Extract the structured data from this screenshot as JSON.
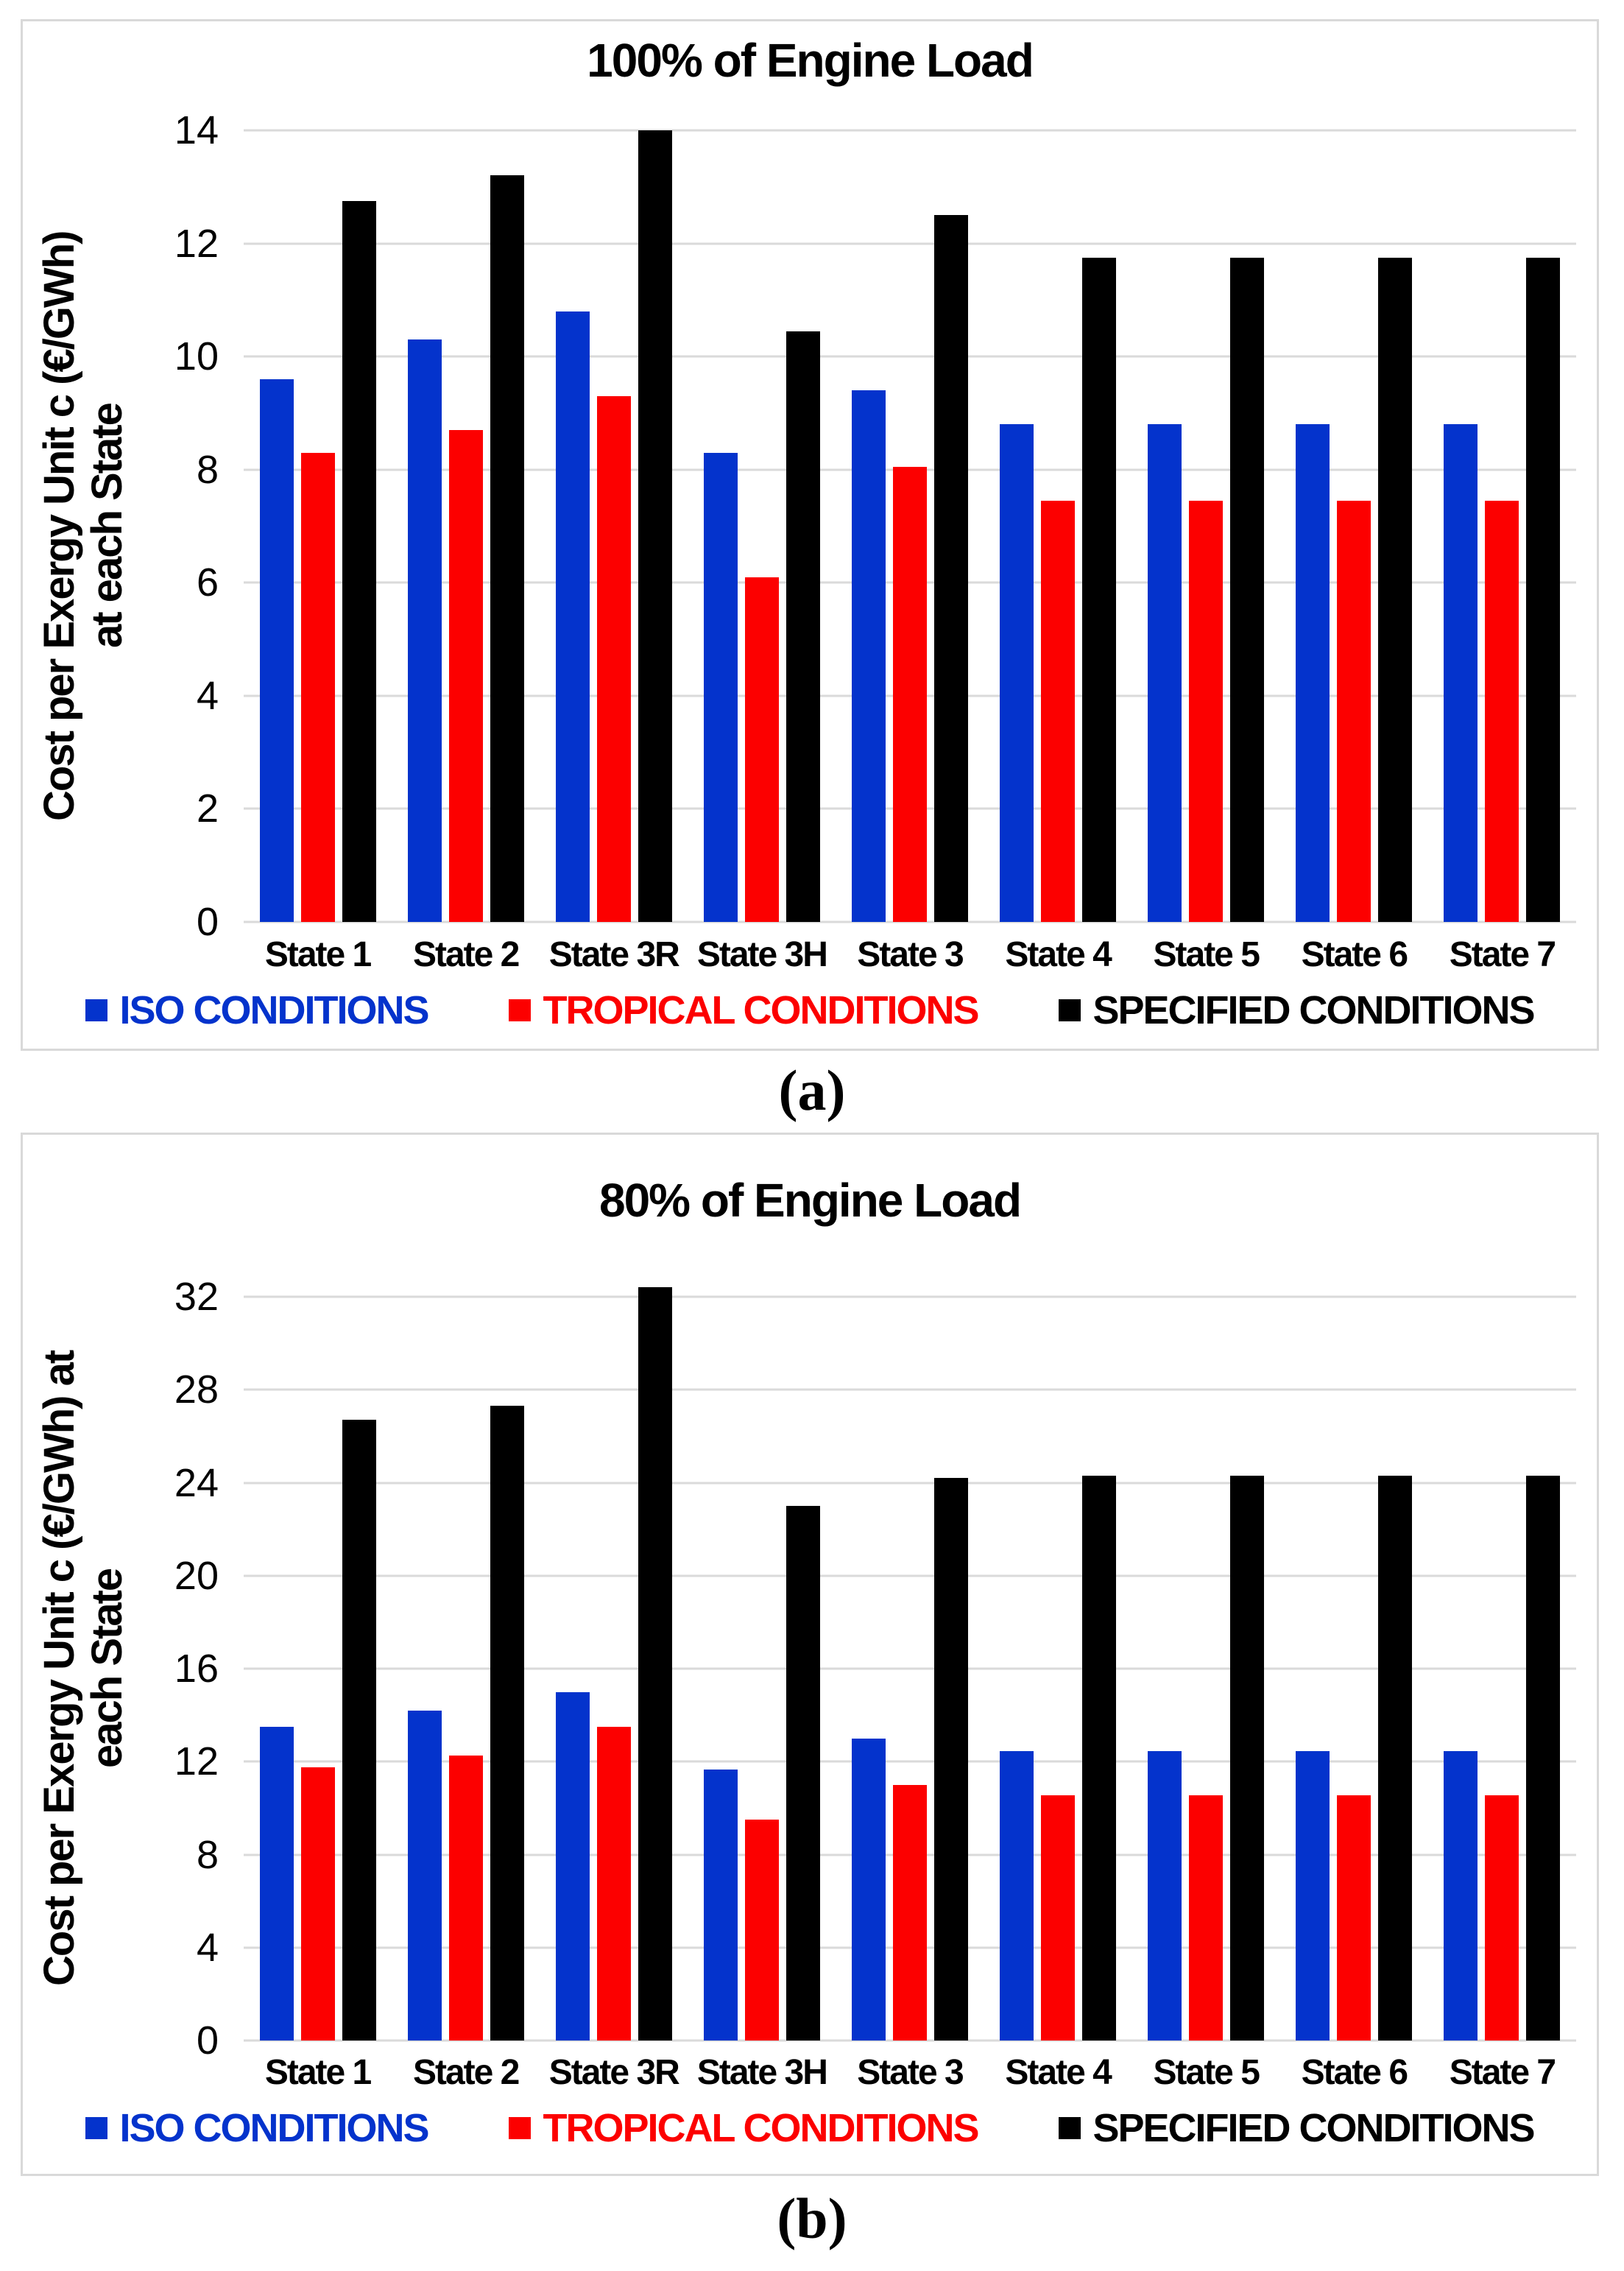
{
  "figure": {
    "caption_a": "(a)",
    "caption_b": "(b)"
  },
  "colors": {
    "iso": "#0433cc",
    "tropical": "#fc0000",
    "specified": "#000000",
    "gridline": "#dadada",
    "panel_border": "#d9d9d9",
    "text": "#000000"
  },
  "chart_data": [
    {
      "id": "a",
      "type": "bar",
      "title": "100% of Engine Load",
      "ylabel_line1": "Cost per Exergy Unit c (€/GWh)",
      "ylabel_line2": "at each State",
      "categories": [
        "State 1",
        "State 2",
        "State 3R",
        "State 3H",
        "State 3",
        "State 4",
        "State 5",
        "State 6",
        "State 7"
      ],
      "yticks": [
        0,
        2,
        4,
        6,
        8,
        10,
        12,
        14
      ],
      "ylim": [
        0,
        14
      ],
      "grid": true,
      "legend_position": "bottom",
      "series": [
        {
          "name": "ISO CONDITIONS",
          "color_key": "iso",
          "values": [
            9.6,
            10.3,
            10.8,
            8.3,
            9.4,
            8.8,
            8.8,
            8.8,
            8.8
          ]
        },
        {
          "name": "TROPICAL CONDITIONS",
          "color_key": "tropical",
          "values": [
            8.3,
            8.7,
            9.3,
            6.1,
            8.05,
            7.45,
            7.45,
            7.45,
            7.45
          ]
        },
        {
          "name": "SPECIFIED CONDITIONS",
          "color_key": "specified",
          "values": [
            12.75,
            13.2,
            14.0,
            10.45,
            12.5,
            11.75,
            11.75,
            11.75,
            11.75
          ]
        }
      ]
    },
    {
      "id": "b",
      "type": "bar",
      "title": "80% of Engine Load",
      "ylabel_line1": "Cost per Exergy Unit c (€/GWh) at",
      "ylabel_line2": "each State",
      "categories": [
        "State 1",
        "State 2",
        "State 3R",
        "State 3H",
        "State 3",
        "State 4",
        "State 5",
        "State 6",
        "State 7"
      ],
      "yticks": [
        0,
        4,
        8,
        12,
        16,
        20,
        24,
        28,
        32
      ],
      "ylim": [
        0,
        32
      ],
      "grid": true,
      "legend_position": "bottom",
      "series": [
        {
          "name": "ISO CONDITIONS",
          "color_key": "iso",
          "values": [
            13.5,
            14.2,
            15.0,
            11.65,
            13.0,
            12.45,
            12.45,
            12.45,
            12.45
          ]
        },
        {
          "name": "TROPICAL CONDITIONS",
          "color_key": "tropical",
          "values": [
            11.75,
            12.25,
            13.5,
            9.5,
            11.0,
            10.55,
            10.55,
            10.55,
            10.55
          ]
        },
        {
          "name": "SPECIFIED CONDITIONS",
          "color_key": "specified",
          "values": [
            26.7,
            27.3,
            32.4,
            23.0,
            24.2,
            24.3,
            24.3,
            24.3,
            24.3
          ]
        }
      ]
    }
  ]
}
